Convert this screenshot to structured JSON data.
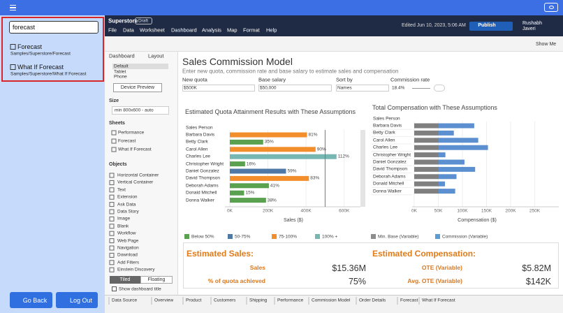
{
  "search": {
    "query": "forecast",
    "results": [
      {
        "title": "Forecast",
        "path": "Samples/Superstore/Forecast"
      },
      {
        "title": "What If Forecast",
        "path": "Samples/Superstore/What If Forecast"
      }
    ]
  },
  "buttons": [
    "Go Back",
    "Log Out"
  ],
  "header": {
    "workbook": "Superstore",
    "status": "Draft",
    "menu": [
      "File",
      "Data",
      "Worksheet",
      "Dashboard",
      "Analysis",
      "Map",
      "Format",
      "Help"
    ],
    "edited": "Edited Jun 10, 2023, 5:06 AM",
    "publish": "Publish",
    "user": "Rushabh Javeri"
  },
  "toolbar": {
    "show_me": "Show Me"
  },
  "sidebar": {
    "tabs": [
      "Dashboard",
      "Layout"
    ],
    "devices": [
      "Default",
      "Tablet",
      "Phone"
    ],
    "device_preview": "Device Preview",
    "size_heading": "Size",
    "size": "min 800x600 - auto",
    "sheets_heading": "Sheets",
    "sheets": [
      "Performance",
      "Forecast",
      "What If Forecast"
    ],
    "objects_heading": "Objects",
    "objects": [
      "Horizontal Container",
      "Vertical Container",
      "Text",
      "Extension",
      "Ask Data",
      "Data Story",
      "Image",
      "Blank",
      "Workflow",
      "Web Page",
      "Navigation",
      "Download",
      "Add Filters",
      "Einstein Discovery"
    ],
    "layout_modes": [
      "Tiled",
      "Floating"
    ],
    "show_title": "Show dashboard title"
  },
  "dashboard": {
    "title": "Sales Commission Model",
    "subtitle": "Enter new quota, commission rate and base salary to estimate sales and compensation",
    "params": [
      {
        "label": "New quota",
        "value": "$500K"
      },
      {
        "label": "Base salary",
        "value": "$50,000"
      },
      {
        "label": "Sort by",
        "value": "Names"
      },
      {
        "label": "Commission rate",
        "value": "18.4%"
      }
    ],
    "quota_chart": {
      "type": "bar",
      "title": "Estimated Quota Attainment Results with These Assumptions",
      "row_header": "Sales Person",
      "x_label": "Sales ($)",
      "names": [
        "Barbara Davis",
        "Betty Clark",
        "Carol Allen",
        "Charles Lee",
        "Christopher Wright",
        "Daniel Gonzalez",
        "David Thompson",
        "Deborah Adams",
        "Donald Mitchell",
        "Donna Walker"
      ],
      "sales": [
        405000,
        175000,
        450000,
        560000,
        80000,
        295000,
        415000,
        205000,
        75000,
        190000
      ],
      "attainment_labels": [
        "81%",
        "35%",
        "90%",
        "112%",
        "16%",
        "59%",
        "83%",
        "41%",
        "15%",
        "38%"
      ],
      "colors": [
        "#f28e2b",
        "#59a14f",
        "#f28e2b",
        "#76b7b2",
        "#59a14f",
        "#4e79a7",
        "#f28e2b",
        "#59a14f",
        "#59a14f",
        "#59a14f"
      ],
      "quota_line": 500000,
      "xlim": [
        0,
        700000
      ],
      "xticks": [
        {
          "value": 0,
          "label": "0K"
        },
        {
          "value": 200000,
          "label": "200K"
        },
        {
          "value": 400000,
          "label": "400K"
        },
        {
          "value": 600000,
          "label": "600K"
        }
      ]
    },
    "comp_chart": {
      "type": "stacked-bar",
      "title": "Total Compensation with These Assumptions",
      "row_header": "Sales Person",
      "x_label": "Compensation ($)",
      "names": [
        "Barbara Davis",
        "Betty Clark",
        "Carol Allen",
        "Charles Lee",
        "Christopher Wright",
        "Daniel Gonzalez",
        "David Thompson",
        "Deborah Adams",
        "Donald Mitchell",
        "Donna Walker"
      ],
      "series": [
        {
          "name": "Min. Base (Variable)",
          "color": "#7f7f7f",
          "values": [
            50000,
            50000,
            50000,
            50000,
            50000,
            50000,
            50000,
            50000,
            50000,
            50000
          ]
        },
        {
          "name": "Commission (Variable)",
          "color": "#5b8fd0",
          "values": [
            74500,
            32200,
            82800,
            103000,
            14700,
            54300,
            76400,
            37700,
            13800,
            35000
          ]
        }
      ],
      "xlim": [
        0,
        300000
      ],
      "xticks": [
        {
          "value": 0,
          "label": "0K"
        },
        {
          "value": 50000,
          "label": "50K"
        },
        {
          "value": 100000,
          "label": "100K"
        },
        {
          "value": 150000,
          "label": "150K"
        },
        {
          "value": 200000,
          "label": "200K"
        },
        {
          "value": 250000,
          "label": "250K"
        }
      ]
    },
    "legend": [
      {
        "name": "Below 50%",
        "color": "#59a14f"
      },
      {
        "name": "50-75%",
        "color": "#4e79a7"
      },
      {
        "name": "75-100%",
        "color": "#f28e2b"
      },
      {
        "name": "100% +",
        "color": "#76b7b2"
      },
      {
        "name": "Min. Base (Variable)",
        "color": "#8c8c8c"
      },
      {
        "name": "Commission (Variable)",
        "color": "#5b9bd5"
      }
    ],
    "summary": {
      "sales_heading": "Estimated Sales:",
      "comp_heading": "Estimated Compensation:",
      "rows": [
        {
          "label": "Sales",
          "value": "$15.36M"
        },
        {
          "label": "% of quota achieved",
          "value": "75%"
        },
        {
          "label": "OTE (Variable)",
          "value": "$5.82M"
        },
        {
          "label": "Avg. OTE (Variable)",
          "value": "$142K"
        }
      ]
    }
  },
  "tabs": [
    "Data Source",
    "Overview",
    "Product",
    "Customers",
    "Shipping",
    "Performance",
    "Commission Model",
    "Order Details",
    "Forecast",
    "What If Forecast"
  ]
}
